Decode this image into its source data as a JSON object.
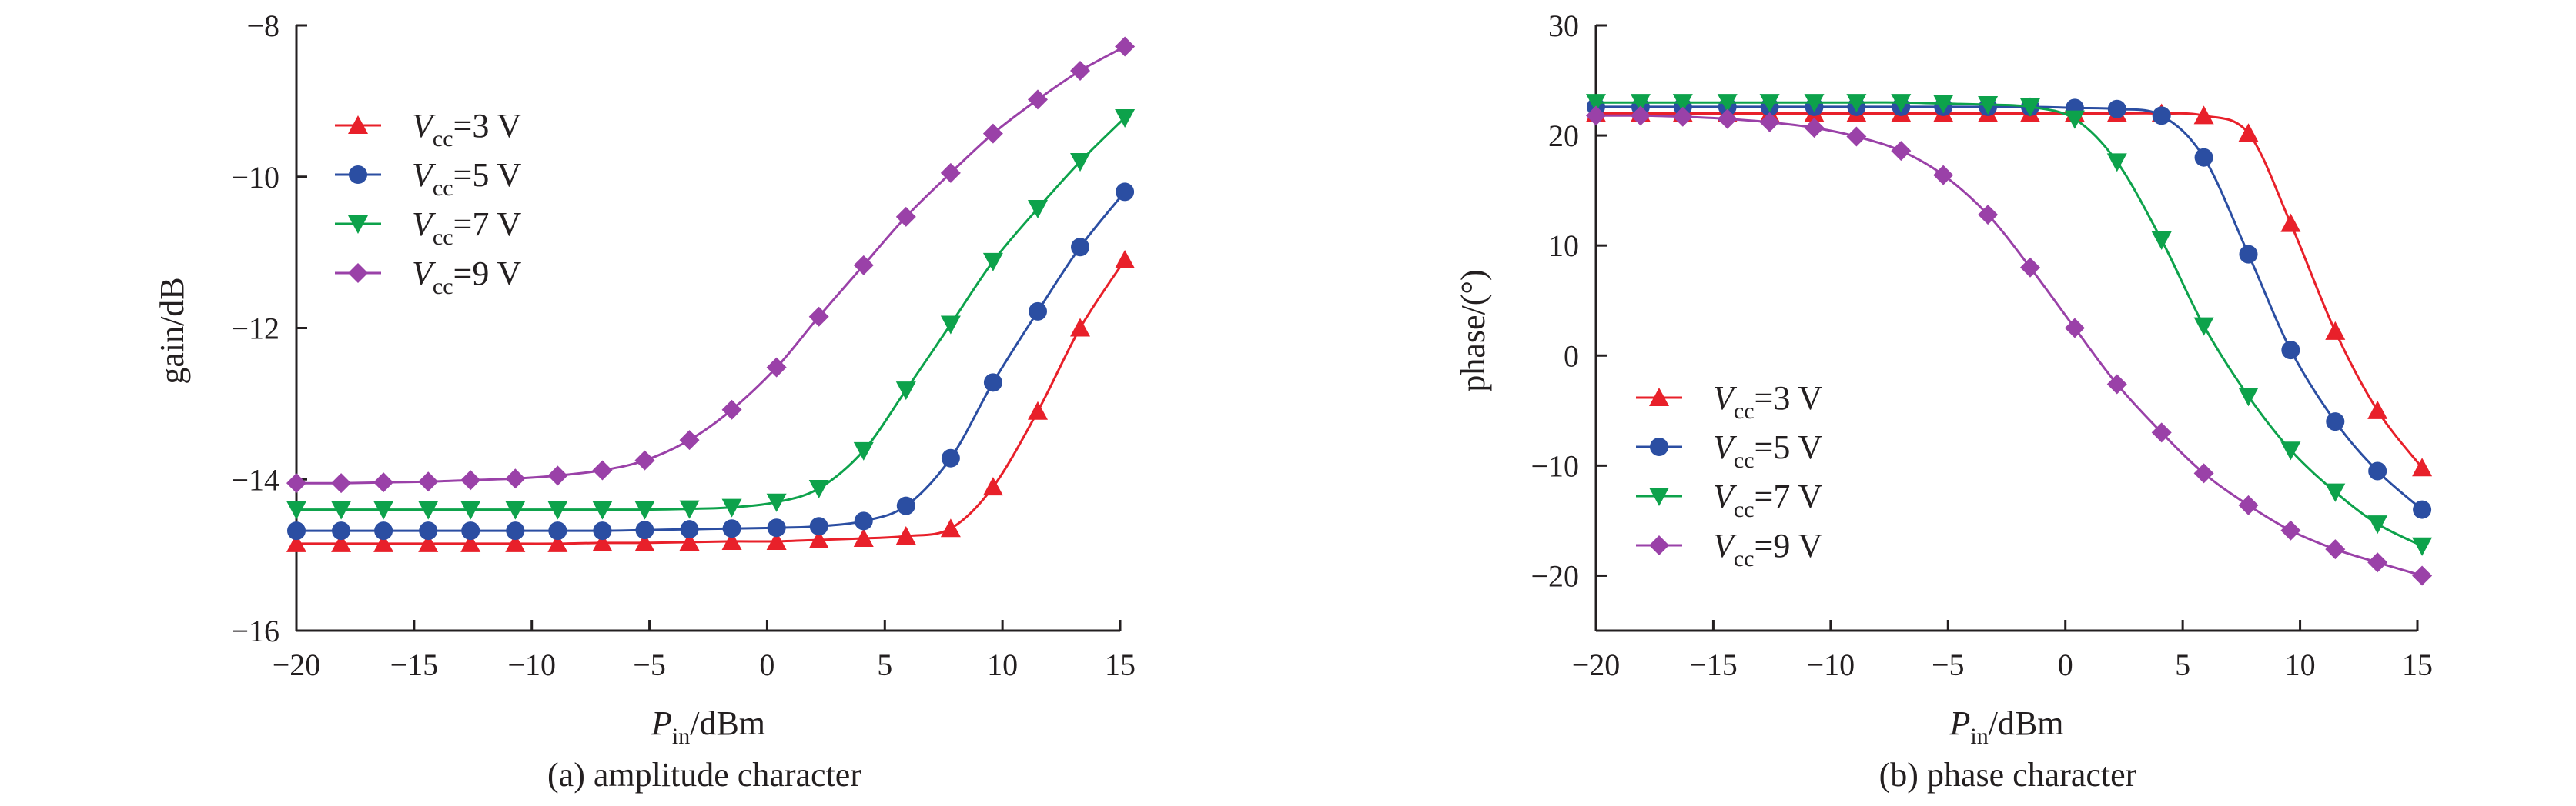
{
  "colors": {
    "vcc3": "#e8202a",
    "vcc5": "#2b4ea2",
    "vcc7": "#0da24b",
    "vcc9": "#9a41a8"
  },
  "chart_data": [
    {
      "type": "line",
      "caption": "(a) amplitude character",
      "xlabel": "P_in/dBm",
      "xlabel_base": "P",
      "xlabel_sub": "in",
      "xlabel_rest": "/dBm",
      "ylabel": "gain/dB",
      "xlim": [
        -20,
        15
      ],
      "ylim": [
        -16,
        -8
      ],
      "xticks": [
        -20,
        -15,
        -10,
        -5,
        0,
        5,
        10,
        15
      ],
      "yticks": [
        -16,
        -14,
        -12,
        -10,
        -8
      ],
      "legend_position": "upper-left",
      "x": [
        -20.0,
        -18.1,
        -16.3,
        -14.4,
        -12.6,
        -10.7,
        -8.9,
        -7.0,
        -5.2,
        -3.3,
        -1.5,
        0.4,
        2.2,
        4.1,
        5.9,
        7.8,
        9.6,
        11.5,
        13.3,
        15.2
      ],
      "series": [
        {
          "name": "Vcc=3 V",
          "sym": "V",
          "sub": "cc",
          "rest": "=3 V",
          "marker": "triangle-up",
          "color_key": "vcc3",
          "values": [
            -14.85,
            -14.85,
            -14.85,
            -14.85,
            -14.85,
            -14.85,
            -14.85,
            -14.84,
            -14.84,
            -14.83,
            -14.82,
            -14.82,
            -14.8,
            -14.78,
            -14.75,
            -14.65,
            -14.1,
            -13.1,
            -12.0,
            -11.1
          ]
        },
        {
          "name": "Vcc=5 V",
          "sym": "V",
          "sub": "cc",
          "rest": "=5 V",
          "marker": "circle",
          "color_key": "vcc5",
          "values": [
            -14.68,
            -14.68,
            -14.68,
            -14.68,
            -14.68,
            -14.68,
            -14.68,
            -14.68,
            -14.67,
            -14.66,
            -14.65,
            -14.64,
            -14.62,
            -14.55,
            -14.35,
            -13.72,
            -12.72,
            -11.78,
            -10.93,
            -10.2
          ]
        },
        {
          "name": "Vcc=7 V",
          "sym": "V",
          "sub": "cc",
          "rest": "=7 V",
          "marker": "triangle-down",
          "color_key": "vcc7",
          "values": [
            -14.4,
            -14.4,
            -14.4,
            -14.4,
            -14.4,
            -14.4,
            -14.4,
            -14.4,
            -14.4,
            -14.39,
            -14.37,
            -14.3,
            -14.12,
            -13.62,
            -12.82,
            -11.95,
            -11.12,
            -10.42,
            -9.8,
            -9.22
          ]
        },
        {
          "name": "Vcc=9 V",
          "sym": "V",
          "sub": "cc",
          "rest": "=9 V",
          "marker": "diamond",
          "color_key": "vcc9",
          "values": [
            -14.05,
            -14.05,
            -14.04,
            -14.03,
            -14.01,
            -13.99,
            -13.95,
            -13.88,
            -13.75,
            -13.48,
            -13.08,
            -12.52,
            -11.85,
            -11.17,
            -10.53,
            -9.95,
            -9.43,
            -8.98,
            -8.6,
            -8.28
          ]
        }
      ]
    },
    {
      "type": "line",
      "caption": "(b) phase character",
      "xlabel": "P_in/dBm",
      "xlabel_base": "P",
      "xlabel_sub": "in",
      "xlabel_rest": "/dBm",
      "ylabel": "phase/(°)",
      "xlim": [
        -20,
        15
      ],
      "ylim": [
        -25,
        30
      ],
      "xticks": [
        -20,
        -15,
        -10,
        -5,
        0,
        5,
        10,
        15
      ],
      "yticks": [
        -20,
        -10,
        0,
        10,
        20,
        30
      ],
      "legend_position": "lower-left",
      "x": [
        -20.0,
        -18.1,
        -16.3,
        -14.4,
        -12.6,
        -10.7,
        -8.9,
        -7.0,
        -5.2,
        -3.3,
        -1.5,
        0.4,
        2.2,
        4.1,
        5.9,
        7.8,
        9.6,
        11.5,
        13.3,
        15.2
      ],
      "series": [
        {
          "name": "Vcc=3 V",
          "sym": "V",
          "sub": "cc",
          "rest": "=3 V",
          "marker": "triangle-up",
          "color_key": "vcc3",
          "values": [
            22.0,
            22.0,
            22.0,
            22.0,
            22.0,
            22.0,
            22.0,
            22.0,
            22.0,
            22.0,
            22.0,
            22.0,
            22.0,
            22.0,
            21.8,
            20.2,
            12.0,
            2.2,
            -5.0,
            -10.2
          ]
        },
        {
          "name": "Vcc=5 V",
          "sym": "V",
          "sub": "cc",
          "rest": "=5 V",
          "marker": "circle",
          "color_key": "vcc5",
          "values": [
            22.6,
            22.6,
            22.6,
            22.6,
            22.6,
            22.6,
            22.6,
            22.6,
            22.6,
            22.6,
            22.6,
            22.5,
            22.4,
            21.8,
            18.0,
            9.2,
            0.5,
            -6.0,
            -10.5,
            -14.0
          ]
        },
        {
          "name": "Vcc=7 V",
          "sym": "V",
          "sub": "cc",
          "rest": "=7 V",
          "marker": "triangle-down",
          "color_key": "vcc7",
          "values": [
            23.0,
            23.0,
            23.0,
            23.0,
            23.0,
            23.0,
            23.0,
            23.0,
            22.9,
            22.8,
            22.6,
            21.5,
            17.6,
            10.5,
            2.7,
            -3.7,
            -8.6,
            -12.4,
            -15.3,
            -17.3
          ]
        },
        {
          "name": "Vcc=9 V",
          "sym": "V",
          "sub": "cc",
          "rest": "=9 V",
          "marker": "diamond",
          "color_key": "vcc9",
          "values": [
            21.8,
            21.8,
            21.7,
            21.5,
            21.2,
            20.7,
            19.9,
            18.6,
            16.4,
            12.8,
            8.0,
            2.5,
            -2.6,
            -7.0,
            -10.7,
            -13.6,
            -15.9,
            -17.6,
            -18.8,
            -20.0
          ]
        }
      ]
    }
  ]
}
